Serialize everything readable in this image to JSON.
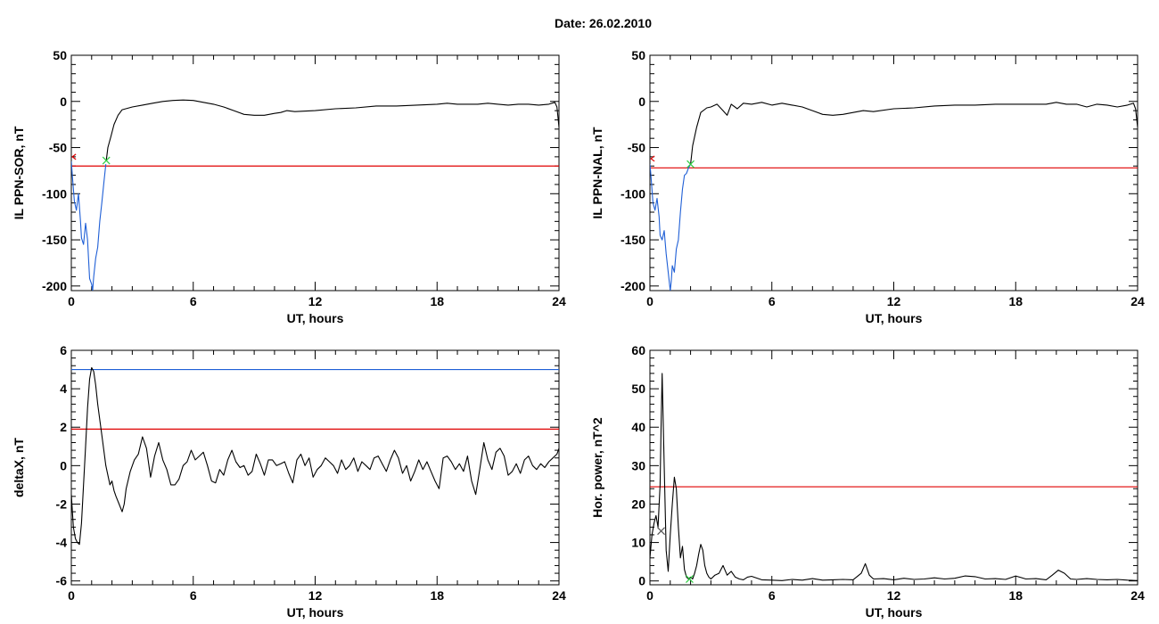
{
  "page": {
    "title": "Date:  26.02.2010"
  },
  "chart_data": [
    {
      "id": "p1",
      "type": "line",
      "xlabel": "UT, hours",
      "ylabel": "IL PPN-SOR, nT",
      "xlim": [
        0,
        24
      ],
      "ylim": [
        -205,
        50
      ],
      "xticks": [
        0,
        6,
        12,
        18,
        24
      ],
      "yticks": [
        -200,
        -150,
        -100,
        -50,
        0,
        50
      ],
      "hlines": [
        {
          "y": -70,
          "color": "#e00000"
        }
      ],
      "markers": [
        {
          "x": 0.05,
          "y": -60,
          "symbol": "<",
          "color": "#e00000"
        },
        {
          "x": 1.72,
          "y": -64,
          "symbol": "x",
          "color": "#2ecc40"
        }
      ],
      "series": [
        {
          "color": "#000000",
          "x": [
            1.72,
            1.8,
            1.95,
            2.1,
            2.3,
            2.5,
            3.0,
            3.5,
            4.0,
            4.5,
            5.0,
            5.5,
            6.0,
            6.5,
            7.0,
            7.5,
            8.0,
            8.5,
            9.0,
            9.5,
            10.0,
            10.3,
            10.6,
            11.0,
            12.0,
            13.0,
            14.0,
            15.0,
            16.0,
            17.0,
            18.0,
            18.5,
            19.0,
            19.5,
            20.0,
            20.5,
            21.0,
            21.5,
            22.0,
            22.5,
            23.0,
            23.5,
            23.8,
            23.9,
            24.0
          ],
          "y": [
            -64,
            -50,
            -38,
            -25,
            -15,
            -9,
            -6,
            -4,
            -2,
            0,
            1,
            1.5,
            1,
            -1,
            -3,
            -6,
            -10,
            -14,
            -15,
            -15,
            -13,
            -12,
            -10,
            -11,
            -10,
            -8,
            -7,
            -5,
            -5,
            -4,
            -3,
            -2,
            -3,
            -3,
            -3,
            -2,
            -3,
            -4,
            -3,
            -3,
            -4,
            -3,
            -1,
            -6,
            -28
          ]
        },
        {
          "color": "#1f5fd6",
          "x": [
            0.0,
            0.05,
            0.15,
            0.25,
            0.35,
            0.45,
            0.5,
            0.6,
            0.7,
            0.8,
            0.9,
            1.0,
            1.05,
            1.1,
            1.2,
            1.3,
            1.4,
            1.5,
            1.6,
            1.7
          ],
          "y": [
            -65,
            -80,
            -108,
            -118,
            -100,
            -130,
            -148,
            -155,
            -132,
            -150,
            -192,
            -198,
            -205,
            -190,
            -170,
            -158,
            -130,
            -110,
            -88,
            -68
          ]
        }
      ]
    },
    {
      "id": "p2",
      "type": "line",
      "xlabel": "UT, hours",
      "ylabel": "IL PPN-NAL, nT",
      "xlim": [
        0,
        24
      ],
      "ylim": [
        -205,
        50
      ],
      "xticks": [
        0,
        6,
        12,
        18,
        24
      ],
      "yticks": [
        -200,
        -150,
        -100,
        -50,
        0,
        50
      ],
      "hlines": [
        {
          "y": -72,
          "color": "#e00000"
        }
      ],
      "markers": [
        {
          "x": 0.05,
          "y": -62,
          "symbol": "<",
          "color": "#e00000"
        },
        {
          "x": 2.0,
          "y": -68,
          "symbol": "x",
          "color": "#2ecc40"
        }
      ],
      "series": [
        {
          "color": "#000000",
          "x": [
            2.0,
            2.1,
            2.3,
            2.5,
            2.8,
            3.0,
            3.3,
            3.6,
            3.8,
            4.0,
            4.3,
            4.6,
            5.0,
            5.5,
            6.0,
            6.5,
            7.0,
            7.5,
            8.0,
            8.5,
            9.0,
            9.5,
            10.0,
            10.5,
            11.0,
            12.0,
            13.0,
            14.0,
            15.0,
            16.0,
            17.0,
            18.0,
            19.0,
            19.5,
            20.0,
            20.5,
            21.0,
            21.5,
            22.0,
            22.5,
            23.0,
            23.5,
            23.8,
            23.9,
            24.0
          ],
          "y": [
            -68,
            -48,
            -28,
            -12,
            -7,
            -6,
            -3,
            -10,
            -15,
            -3,
            -8,
            -2,
            -3,
            -1,
            -4,
            -2,
            -4,
            -6,
            -10,
            -14,
            -15,
            -14,
            -12,
            -10,
            -11,
            -8,
            -7,
            -5,
            -4,
            -4,
            -3,
            -3,
            -3,
            -3,
            -1,
            -3,
            -3,
            -6,
            -3,
            -4,
            -6,
            -4,
            -2,
            -8,
            -28
          ]
        },
        {
          "color": "#1f5fd6",
          "x": [
            0.0,
            0.05,
            0.15,
            0.25,
            0.35,
            0.45,
            0.5,
            0.6,
            0.7,
            0.8,
            0.9,
            1.0,
            1.05,
            1.1,
            1.2,
            1.3,
            1.4,
            1.5,
            1.6,
            1.7,
            1.8,
            1.9,
            2.0
          ],
          "y": [
            -68,
            -80,
            -110,
            -118,
            -105,
            -125,
            -145,
            -150,
            -140,
            -165,
            -185,
            -205,
            -195,
            -178,
            -185,
            -160,
            -150,
            -120,
            -95,
            -80,
            -78,
            -72,
            -68
          ]
        }
      ]
    },
    {
      "id": "p3",
      "type": "line",
      "xlabel": "UT, hours",
      "ylabel": "deltaX, nT",
      "xlim": [
        0,
        24
      ],
      "ylim": [
        -6.2,
        6
      ],
      "xticks": [
        0,
        6,
        12,
        18,
        24
      ],
      "yticks": [
        -6,
        -4,
        -2,
        0,
        2,
        4,
        6
      ],
      "hlines": [
        {
          "y": 5.0,
          "color": "#1f5fd6"
        },
        {
          "y": 1.9,
          "color": "#e00000"
        }
      ],
      "markers": [],
      "series": [
        {
          "color": "#000000",
          "x": [
            0.0,
            0.1,
            0.2,
            0.3,
            0.4,
            0.5,
            0.6,
            0.7,
            0.8,
            0.9,
            1.0,
            1.1,
            1.2,
            1.3,
            1.5,
            1.7,
            1.9,
            2.0,
            2.1,
            2.2,
            2.35,
            2.5,
            2.6,
            2.7,
            2.9,
            3.1,
            3.3,
            3.5,
            3.7,
            3.9,
            4.1,
            4.3,
            4.5,
            4.7,
            4.9,
            5.1,
            5.3,
            5.5,
            5.7,
            5.9,
            6.1,
            6.3,
            6.5,
            6.7,
            6.9,
            7.1,
            7.3,
            7.5,
            7.7,
            7.9,
            8.1,
            8.3,
            8.5,
            8.7,
            8.9,
            9.1,
            9.3,
            9.5,
            9.7,
            9.9,
            10.1,
            10.3,
            10.5,
            10.7,
            10.9,
            11.1,
            11.3,
            11.5,
            11.7,
            11.9,
            12.1,
            12.3,
            12.5,
            12.7,
            12.9,
            13.1,
            13.3,
            13.5,
            13.7,
            13.9,
            14.1,
            14.3,
            14.5,
            14.7,
            14.9,
            15.1,
            15.3,
            15.5,
            15.7,
            15.9,
            16.1,
            16.3,
            16.5,
            16.7,
            16.9,
            17.1,
            17.3,
            17.5,
            17.7,
            17.9,
            18.1,
            18.3,
            18.5,
            18.7,
            18.9,
            19.1,
            19.3,
            19.5,
            19.7,
            19.9,
            20.1,
            20.3,
            20.5,
            20.7,
            20.9,
            21.1,
            21.3,
            21.5,
            21.7,
            21.9,
            22.1,
            22.3,
            22.5,
            22.7,
            22.9,
            23.1,
            23.3,
            23.5,
            23.7,
            23.9,
            24.0
          ],
          "y": [
            -1.5,
            -3.2,
            -3.8,
            -4.0,
            -4.1,
            -3.0,
            -1.0,
            1.0,
            3.0,
            4.5,
            5.1,
            4.9,
            4.2,
            3.2,
            1.6,
            0.0,
            -1.0,
            -0.8,
            -1.3,
            -1.6,
            -2.0,
            -2.4,
            -2.0,
            -1.2,
            -0.3,
            0.3,
            0.6,
            1.5,
            0.9,
            -0.6,
            0.5,
            1.2,
            0.3,
            -0.2,
            -1.0,
            -1.0,
            -0.7,
            0.0,
            0.2,
            0.8,
            0.3,
            0.5,
            0.7,
            0.0,
            -0.8,
            -0.9,
            -0.2,
            -0.5,
            0.3,
            0.8,
            0.2,
            -0.1,
            0.0,
            -0.5,
            -0.3,
            0.6,
            0.1,
            -0.5,
            0.3,
            0.3,
            0.0,
            0.1,
            0.2,
            -0.4,
            -0.9,
            0.3,
            0.6,
            0.0,
            0.4,
            -0.6,
            -0.2,
            0.0,
            0.4,
            0.2,
            0.0,
            -0.4,
            0.3,
            -0.2,
            0.0,
            0.4,
            -0.3,
            0.2,
            0.0,
            -0.2,
            0.4,
            0.5,
            0.1,
            -0.3,
            0.3,
            0.8,
            0.4,
            -0.4,
            0.0,
            -0.8,
            -0.3,
            0.3,
            -0.2,
            0.2,
            -0.3,
            -0.8,
            -1.2,
            0.4,
            0.5,
            0.2,
            -0.2,
            0.1,
            -0.3,
            0.5,
            -0.8,
            -1.5,
            -0.2,
            1.2,
            0.3,
            -0.2,
            0.7,
            0.9,
            0.5,
            -0.5,
            -0.3,
            0.1,
            -0.4,
            0.3,
            0.5,
            0.0,
            -0.2,
            0.1,
            -0.1,
            0.2,
            0.4,
            0.6,
            0.9
          ]
        }
      ]
    },
    {
      "id": "p4",
      "type": "line",
      "xlabel": "UT, hours",
      "ylabel": "Hor. power, nT^2",
      "xlim": [
        0,
        24
      ],
      "ylim": [
        -1,
        60
      ],
      "xticks": [
        0,
        6,
        12,
        18,
        24
      ],
      "yticks": [
        0,
        10,
        20,
        30,
        40,
        50,
        60
      ],
      "hlines": [
        {
          "y": 24.5,
          "color": "#e00000"
        }
      ],
      "markers": [
        {
          "x": 0.55,
          "y": 13,
          "symbol": "x",
          "color": "#555555"
        },
        {
          "x": 1.95,
          "y": 0.5,
          "symbol": "x",
          "color": "#2ecc40"
        }
      ],
      "series": [
        {
          "color": "#000000",
          "x": [
            0.0,
            0.1,
            0.2,
            0.3,
            0.4,
            0.5,
            0.55,
            0.6,
            0.7,
            0.8,
            0.9,
            1.0,
            1.1,
            1.2,
            1.3,
            1.4,
            1.5,
            1.6,
            1.7,
            1.8,
            1.9,
            2.0,
            2.1,
            2.2,
            2.3,
            2.4,
            2.5,
            2.6,
            2.7,
            2.8,
            2.9,
            3.0,
            3.2,
            3.4,
            3.6,
            3.8,
            4.0,
            4.2,
            4.4,
            4.6,
            4.8,
            5.0,
            5.5,
            6.0,
            6.5,
            7.0,
            7.5,
            8.0,
            8.5,
            9.0,
            9.5,
            10.0,
            10.4,
            10.6,
            10.8,
            11.0,
            11.5,
            12.0,
            12.5,
            13.0,
            13.5,
            14.0,
            14.5,
            15.0,
            15.5,
            16.0,
            16.5,
            17.0,
            17.5,
            18.0,
            18.5,
            19.0,
            19.5,
            19.8,
            20.1,
            20.4,
            20.7,
            21.0,
            21.5,
            22.0,
            22.5,
            23.0,
            23.5,
            24.0
          ],
          "y": [
            6,
            12,
            15,
            17,
            14,
            25,
            40,
            54,
            30,
            8,
            2.5,
            12,
            20,
            27,
            24,
            14,
            6,
            9,
            3,
            1,
            0.5,
            1,
            0.5,
            2,
            4,
            7,
            9.5,
            8,
            4,
            2,
            1,
            0.5,
            1.5,
            2,
            4,
            1.5,
            2.5,
            1,
            0.5,
            0.3,
            1,
            1.2,
            0.3,
            0.2,
            0.1,
            0.4,
            0.2,
            0.6,
            0.2,
            0.3,
            0.4,
            0.3,
            2,
            4.5,
            1.5,
            0.5,
            0.6,
            0.3,
            0.7,
            0.4,
            0.5,
            0.8,
            0.5,
            0.7,
            1.3,
            1.1,
            0.5,
            0.6,
            0.4,
            1.3,
            0.5,
            0.6,
            0.3,
            1.5,
            2.8,
            2.0,
            0.5,
            0.4,
            0.6,
            0.4,
            0.3,
            0.4,
            0.2,
            0.1
          ]
        }
      ]
    }
  ]
}
